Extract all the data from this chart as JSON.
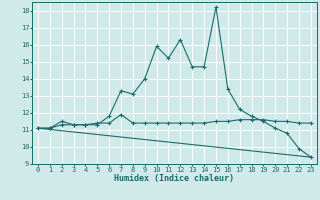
{
  "xlabel": "Humidex (Indice chaleur)",
  "bg_color": "#d0eaea",
  "line_color": "#1a6b6b",
  "grid_color": "#ffffff",
  "xlim": [
    -0.5,
    23.5
  ],
  "ylim": [
    9,
    18.5
  ],
  "yticks": [
    9,
    10,
    11,
    12,
    13,
    14,
    15,
    16,
    17,
    18
  ],
  "xticks": [
    0,
    1,
    2,
    3,
    4,
    5,
    6,
    7,
    8,
    9,
    10,
    11,
    12,
    13,
    14,
    15,
    16,
    17,
    18,
    19,
    20,
    21,
    22,
    23
  ],
  "series1_x": [
    0,
    1,
    2,
    3,
    4,
    5,
    6,
    7,
    8,
    9,
    10,
    11,
    12,
    13,
    14,
    15,
    16,
    17,
    18,
    19,
    20,
    21,
    22,
    23
  ],
  "series1_y": [
    11.1,
    11.1,
    11.3,
    11.3,
    11.3,
    11.3,
    11.8,
    13.3,
    13.1,
    14.0,
    15.9,
    15.2,
    16.3,
    14.7,
    14.7,
    18.2,
    13.4,
    12.2,
    11.8,
    11.5,
    11.1,
    10.8,
    9.9,
    9.4
  ],
  "series2_x": [
    0,
    1,
    2,
    3,
    4,
    5,
    6,
    7,
    8,
    9,
    10,
    11,
    12,
    13,
    14,
    15,
    16,
    17,
    18,
    19,
    20,
    21,
    22,
    23
  ],
  "series2_y": [
    11.1,
    11.1,
    11.5,
    11.3,
    11.3,
    11.4,
    11.4,
    11.9,
    11.4,
    11.4,
    11.4,
    11.4,
    11.4,
    11.4,
    11.4,
    11.5,
    11.5,
    11.6,
    11.6,
    11.6,
    11.5,
    11.5,
    11.4,
    11.4
  ],
  "series3_x": [
    0,
    23
  ],
  "series3_y": [
    11.1,
    9.4
  ]
}
